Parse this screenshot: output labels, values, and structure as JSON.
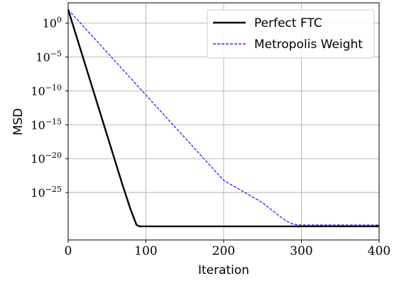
{
  "chart_data": {
    "type": "line",
    "xlabel": "Iteration",
    "ylabel": "MSD",
    "y_scale": "log",
    "grid": true,
    "legend_position": "top-right",
    "xlim": [
      0,
      400
    ],
    "ylim_log10": [
      -32,
      3
    ],
    "x_ticks": [
      {
        "value": 0,
        "label": "0"
      },
      {
        "value": 100,
        "label": "100"
      },
      {
        "value": 200,
        "label": "200"
      },
      {
        "value": 300,
        "label": "300"
      },
      {
        "value": 400,
        "label": "400"
      }
    ],
    "y_ticks": [
      {
        "exponent": 0,
        "base": "10",
        "exp_label": "0"
      },
      {
        "exponent": -5,
        "base": "10",
        "exp_label": "−5"
      },
      {
        "exponent": -10,
        "base": "10",
        "exp_label": "−10"
      },
      {
        "exponent": -15,
        "base": "10",
        "exp_label": "−15"
      },
      {
        "exponent": -20,
        "base": "10",
        "exp_label": "−20"
      },
      {
        "exponent": -25,
        "base": "10",
        "exp_label": "−25"
      }
    ],
    "series": [
      {
        "name": "Perfect FTC",
        "color": "#000000",
        "style": "solid",
        "x": [
          0,
          10,
          20,
          30,
          40,
          50,
          60,
          70,
          80,
          85,
          88,
          92,
          100,
          150,
          200,
          250,
          300,
          350,
          400
        ],
        "log10_y": [
          2,
          -1.7,
          -5.4,
          -9.1,
          -12.8,
          -16.5,
          -20.2,
          -23.9,
          -27.4,
          -28.9,
          -29.8,
          -30,
          -30,
          -30,
          -30,
          -30,
          -30,
          -30,
          -30
        ]
      },
      {
        "name": "Metropolis Weight",
        "color": "#0000ff",
        "style": "dashed",
        "x": [
          0,
          50,
          100,
          150,
          200,
          250,
          270,
          280,
          290,
          300,
          350,
          400
        ],
        "log10_y": [
          2,
          -4.3,
          -10.6,
          -16.9,
          -23.2,
          -26.5,
          -28.3,
          -29.2,
          -29.7,
          -29.8,
          -29.8,
          -29.8
        ]
      }
    ]
  }
}
